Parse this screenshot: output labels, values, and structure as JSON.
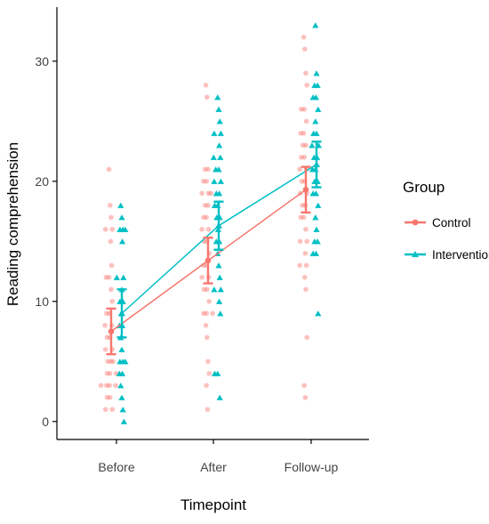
{
  "chart_data": {
    "type": "scatter",
    "xlabel": "Timepoint",
    "ylabel": "Reading comprehension",
    "categories": [
      "Before",
      "After",
      "Follow-up"
    ],
    "ylim": [
      -1.5,
      34.5
    ],
    "yticks": [
      0,
      10,
      20,
      30
    ],
    "grid": false,
    "legend": {
      "title": "Group",
      "placement": "right"
    },
    "series": [
      {
        "name": "Control",
        "color": "#F8766D",
        "marker": "circle",
        "means": [
          7.5,
          13.4,
          19.3
        ],
        "ci_low": [
          5.6,
          11.5,
          17.4
        ],
        "ci_high": [
          9.4,
          15.3,
          21.2
        ],
        "points": [
          [
            21,
            18,
            17,
            16,
            16,
            15,
            13,
            12,
            12,
            11,
            10,
            9,
            9,
            8,
            8,
            7,
            7,
            6,
            6,
            5,
            5,
            5,
            4,
            4,
            4,
            3,
            3,
            3,
            3,
            2,
            2,
            1,
            1
          ],
          [
            28,
            27,
            21,
            21,
            20,
            20,
            19,
            19,
            19,
            18,
            18,
            17,
            17,
            16,
            16,
            15,
            15,
            14,
            13,
            13,
            12,
            12,
            11,
            11,
            10,
            9,
            9,
            9,
            8,
            7,
            5,
            4,
            3,
            1
          ],
          [
            32,
            31,
            29,
            28,
            26,
            26,
            25,
            24,
            24,
            23,
            23,
            22,
            22,
            21,
            21,
            20,
            20,
            19,
            19,
            18,
            18,
            17,
            17,
            16,
            15,
            15,
            14,
            13,
            13,
            12,
            11,
            7,
            3,
            2
          ]
        ]
      },
      {
        "name": "Intervention",
        "color": "#00BFC4",
        "marker": "triangle",
        "means": [
          9.0,
          16.3,
          21.4
        ],
        "ci_low": [
          7.0,
          14.3,
          19.5
        ],
        "ci_high": [
          11.0,
          18.3,
          23.3
        ],
        "points": [
          [
            18,
            17,
            16,
            16,
            16,
            15,
            12,
            12,
            11,
            10,
            10,
            9,
            8,
            8,
            7,
            6,
            5,
            5,
            5,
            4,
            4,
            3,
            2,
            1,
            0
          ],
          [
            27,
            26,
            25,
            24,
            24,
            23,
            22,
            22,
            21,
            21,
            20,
            20,
            19,
            19,
            18,
            18,
            17,
            17,
            16,
            15,
            15,
            14,
            13,
            12,
            11,
            11,
            10,
            9,
            4,
            4,
            2
          ],
          [
            33,
            29,
            28,
            28,
            27,
            27,
            26,
            25,
            24,
            24,
            23,
            23,
            22,
            22,
            21,
            21,
            20,
            20,
            19,
            19,
            18,
            17,
            16,
            15,
            15,
            14,
            14,
            9
          ]
        ]
      }
    ]
  }
}
